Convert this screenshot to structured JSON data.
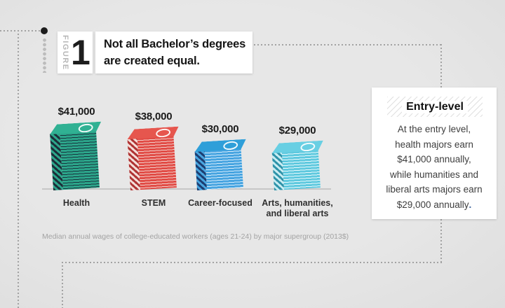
{
  "figure": {
    "label": "FIGURE",
    "number": "1",
    "title_lines": [
      "Not all Bachelor’s degrees",
      "are created equal."
    ]
  },
  "chart_data": {
    "type": "bar",
    "title": "Not all Bachelor's degrees are created equal.",
    "figure_number": "1",
    "categories": [
      "Health",
      "STEM",
      "Career-focused",
      "Arts, humanities, and liberal arts"
    ],
    "values": [
      41000,
      38000,
      30000,
      29000
    ],
    "value_labels": [
      "$41,000",
      "$38,000",
      "$30,000",
      "$29,000"
    ],
    "unit": "US dollars per year (2013$)",
    "note": "Median annual wages of college-educated workers (ages 21-24) by major supergroup (2013$)",
    "legend_position": "none",
    "grid": false,
    "ylim": [
      0,
      45000
    ],
    "bar_colors": [
      "#2ca68b",
      "#e14b45",
      "#45a3e0",
      "#5ec8de"
    ],
    "bar_styles": [
      {
        "face": "#2ca68b",
        "stripe": "#17333c",
        "side_dark": "#1b2f39",
        "side_light": "#2ca68b",
        "top": "#30b193"
      },
      {
        "face": "#e14b45",
        "stripe": "#f2d0cb",
        "side_dark": "#b03434",
        "side_light": "#f4ddd8",
        "top": "#e6564e"
      },
      {
        "face": "#45a3e0",
        "stripe": "#d9eefc",
        "side_dark": "#1d3e72",
        "side_light": "#49a6e0",
        "top": "#2f9fd9"
      },
      {
        "face": "#5ec8de",
        "stripe": "#ecfbfd",
        "side_dark": "#2f93a9",
        "side_light": "#c8ecf2",
        "top": "#68cfe3"
      }
    ]
  },
  "sidebar_card": {
    "title": "Entry-level",
    "lines": [
      "At the entry level,",
      "health majors earn",
      "$41,000 annually,",
      "while humanities and",
      "liberal arts majors earn",
      "$29,000 annually"
    ],
    "period": "."
  },
  "colors": {
    "background": "#e4e4e4",
    "dotted_line": "#a2a2a2",
    "baseline": "#c7c7c7",
    "card": "#ffffff",
    "text_dark": "#1b1b1b",
    "text_muted": "#a3a3a3"
  }
}
